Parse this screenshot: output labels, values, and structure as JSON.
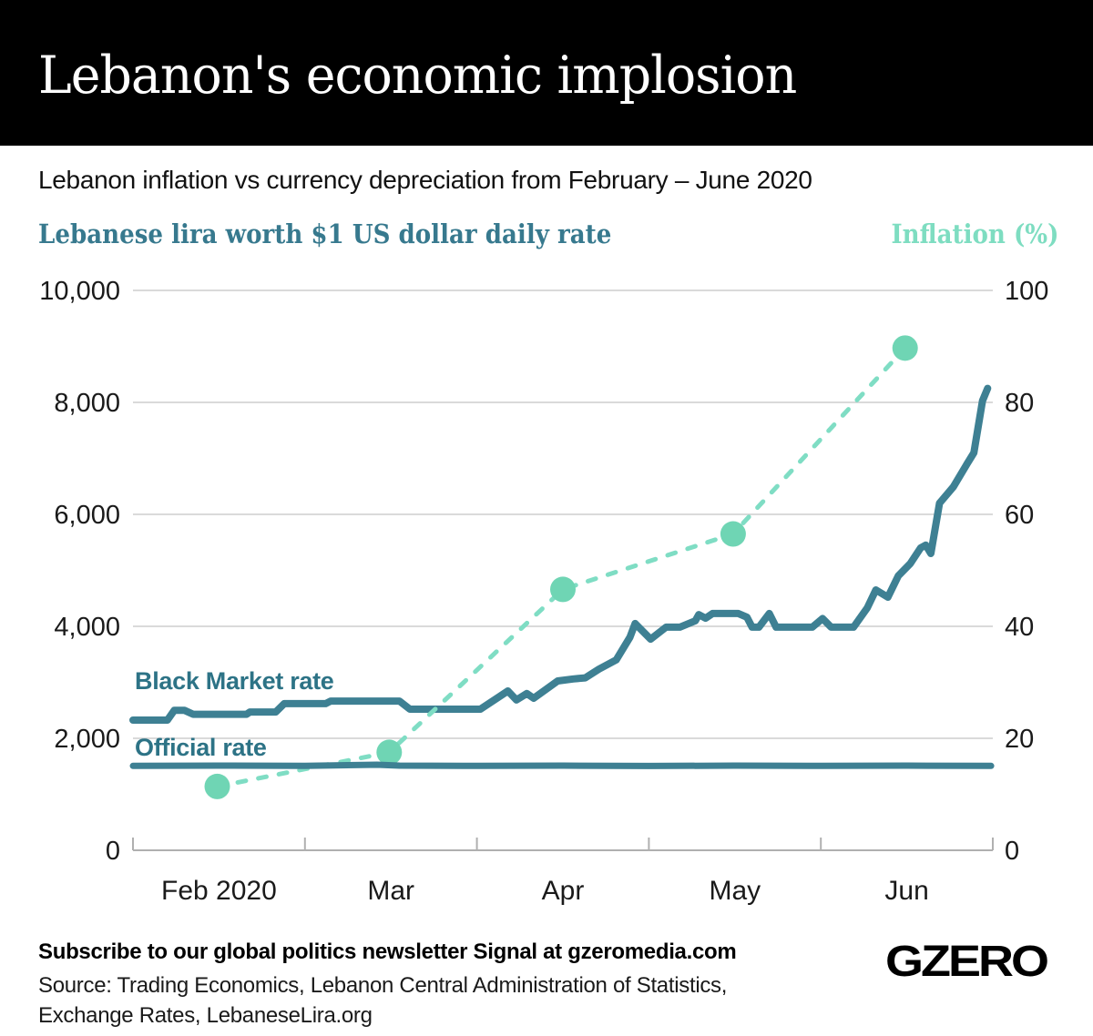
{
  "header": {
    "title": "Lebanon's economic implosion"
  },
  "subtitle": "Lebanon inflation vs currency depreciation from February – June 2020",
  "footer": {
    "newsletter": "Subscribe to our global politics newsletter Signal at gzeromedia.com",
    "source_line1": "Source: Trading Economics, Lebanon Central Administration of Statistics,",
    "source_line2": "Exchange Rates, LebaneseLira.org",
    "logo": "GZERO"
  },
  "colors": {
    "banner_bg": "#000000",
    "title_text": "#ffffff",
    "rate_line": "#3e8093",
    "rate_label": "#2d7386",
    "left_axis_title": "#37798e",
    "right_axis_title": "#7eddc1",
    "inflation_dash": "#7fddc4",
    "inflation_dot": "#6fd5b4",
    "gridline": "#cdcdcd",
    "axis_line": "#b0b0b0",
    "tick_text": "#1a1a1a"
  },
  "chart_data": {
    "type": "line",
    "title": "Lebanon inflation vs currency depreciation from February – June 2020",
    "x_axis": {
      "labels": [
        "Feb 2020",
        "Mar",
        "Apr",
        "May",
        "Jun"
      ],
      "month_start_ticks": [
        0,
        1,
        2,
        3,
        4
      ],
      "unit": "months since Feb 1 2020"
    },
    "left_axis": {
      "title": "Lebanese lira worth $1 US dollar daily rate",
      "range": [
        0,
        10000
      ],
      "tick_values": [
        0,
        2000,
        4000,
        6000,
        8000,
        10000
      ],
      "tick_labels": [
        "0",
        "2,000",
        "4,000",
        "6,000",
        "8,000",
        "10,000"
      ]
    },
    "right_axis": {
      "title": "Inflation (%)",
      "range": [
        0,
        100
      ],
      "tick_values": [
        0,
        20,
        40,
        60,
        80,
        100
      ],
      "tick_labels": [
        "0",
        "20",
        "40",
        "60",
        "80",
        "100"
      ]
    },
    "grid": "horizontal-only",
    "series": [
      {
        "name": "Black Market rate",
        "axis": "left",
        "style": "solid",
        "color": "#3e8093",
        "points": [
          [
            0,
            2325
          ],
          [
            0.2,
            2325
          ],
          [
            0.24,
            2500
          ],
          [
            0.3,
            2500
          ],
          [
            0.35,
            2430
          ],
          [
            0.66,
            2430
          ],
          [
            0.68,
            2470
          ],
          [
            0.83,
            2470
          ],
          [
            0.88,
            2620
          ],
          [
            1.12,
            2620
          ],
          [
            1.15,
            2665
          ],
          [
            1.55,
            2665
          ],
          [
            1.61,
            2520
          ],
          [
            2.02,
            2520
          ],
          [
            2.18,
            2845
          ],
          [
            2.23,
            2685
          ],
          [
            2.29,
            2800
          ],
          [
            2.33,
            2715
          ],
          [
            2.47,
            3025
          ],
          [
            2.56,
            3060
          ],
          [
            2.63,
            3080
          ],
          [
            2.71,
            3235
          ],
          [
            2.81,
            3400
          ],
          [
            2.89,
            3805
          ],
          [
            2.92,
            4050
          ],
          [
            3.01,
            3770
          ],
          [
            3.1,
            3985
          ],
          [
            3.18,
            3985
          ],
          [
            3.27,
            4100
          ],
          [
            3.29,
            4210
          ],
          [
            3.33,
            4145
          ],
          [
            3.37,
            4230
          ],
          [
            3.52,
            4230
          ],
          [
            3.57,
            4165
          ],
          [
            3.6,
            3985
          ],
          [
            3.64,
            3985
          ],
          [
            3.7,
            4230
          ],
          [
            3.74,
            3985
          ],
          [
            3.95,
            3985
          ],
          [
            4.01,
            4140
          ],
          [
            4.06,
            3985
          ],
          [
            4.19,
            3985
          ],
          [
            4.27,
            4330
          ],
          [
            4.32,
            4650
          ],
          [
            4.39,
            4520
          ],
          [
            4.45,
            4900
          ],
          [
            4.52,
            5120
          ],
          [
            4.58,
            5400
          ],
          [
            4.61,
            5450
          ],
          [
            4.64,
            5300
          ],
          [
            4.69,
            6200
          ],
          [
            4.77,
            6490
          ],
          [
            4.85,
            6900
          ],
          [
            4.89,
            7100
          ],
          [
            4.94,
            8030
          ],
          [
            4.97,
            8250
          ]
        ]
      },
      {
        "name": "Official rate",
        "axis": "left",
        "style": "solid",
        "color": "#3e8093",
        "points": [
          [
            0,
            1508
          ],
          [
            0.5,
            1512
          ],
          [
            1,
            1508
          ],
          [
            1.42,
            1528
          ],
          [
            1.55,
            1512
          ],
          [
            2,
            1508
          ],
          [
            2.5,
            1512
          ],
          [
            3,
            1506
          ],
          [
            3.5,
            1512
          ],
          [
            4,
            1508
          ],
          [
            4.5,
            1512
          ],
          [
            4.99,
            1508
          ]
        ]
      },
      {
        "name": "Inflation",
        "axis": "right",
        "style": "dashed-with-dots",
        "color": "#7fddc4",
        "dot_color": "#6fd5b4",
        "points": [
          [
            0.49,
            11.4
          ],
          [
            1.49,
            17.5
          ],
          [
            2.5,
            46.6
          ],
          [
            3.49,
            56.5
          ],
          [
            4.49,
            89.7
          ]
        ]
      }
    ],
    "annotations": [
      "Black Market rate",
      "Official rate"
    ]
  }
}
